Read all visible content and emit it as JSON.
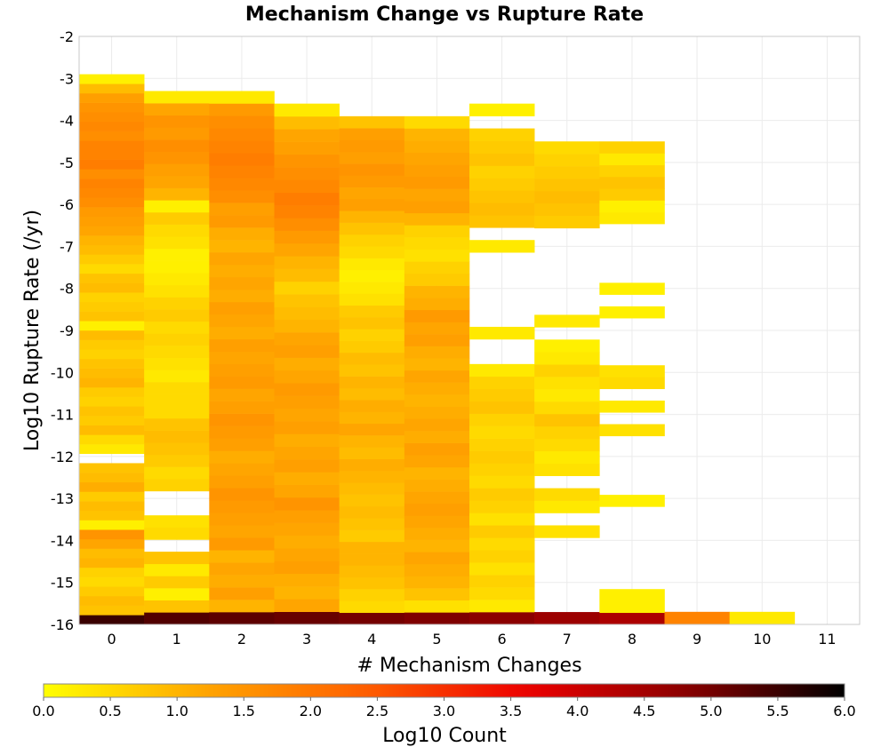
{
  "chart_data": {
    "type": "heatmap",
    "title": "Mechanism Change vs Rupture Rate",
    "xlabel": "# Mechanism Changes",
    "ylabel": "Log10 Rupture Rate (/yr)",
    "colorbar_label": "Log10 Count",
    "x_ticks": [
      "0",
      "1",
      "2",
      "3",
      "4",
      "5",
      "6",
      "7",
      "8",
      "9",
      "10",
      "11"
    ],
    "y_ticks": [
      "-2",
      "-3",
      "-4",
      "-5",
      "-6",
      "-7",
      "-8",
      "-9",
      "-10",
      "-11",
      "-12",
      "-13",
      "-14",
      "-15",
      "-16"
    ],
    "colorbar_ticks": [
      "0.0",
      "0.5",
      "1.0",
      "1.5",
      "2.0",
      "2.5",
      "3.0",
      "3.5",
      "4.0",
      "4.5",
      "5.0",
      "5.5",
      "6.0"
    ],
    "xlim": [
      -0.5,
      11.5
    ],
    "ylim": [
      -16,
      -2
    ],
    "clim": [
      0,
      6
    ],
    "bin_height": 0.2857,
    "colormap": [
      "#ffff00",
      "#ffa500",
      "#ff6000",
      "#ee0000",
      "#8b0000",
      "#000000"
    ],
    "columns": [
      {
        "x": 0,
        "ylow": -16.0,
        "yhigh": -2.9,
        "values": [
          5.5,
          0.8,
          0.9,
          0.7,
          0.5,
          0.6,
          1.0,
          0.9,
          1.2,
          1.5,
          0.2,
          0.8,
          0.9,
          0.7,
          1.1,
          0.9,
          0.8,
          null,
          0.3,
          0.5,
          0.9,
          0.7,
          0.8,
          0.6,
          0.7,
          1.0,
          0.9,
          0.8,
          0.6,
          0.7,
          0.9,
          0.2,
          0.8,
          0.7,
          0.6,
          0.9,
          0.8,
          0.5,
          0.7,
          0.9,
          1.0,
          1.2,
          1.3,
          1.4,
          1.6,
          1.7,
          1.8,
          1.6,
          1.9,
          1.8,
          1.8,
          1.6,
          1.7,
          1.6,
          1.5,
          1.3,
          0.9,
          0.2
        ]
      },
      {
        "x": 1,
        "ylow": -16.0,
        "yhigh": -3.3,
        "values": [
          5.3,
          0.8,
          0.2,
          0.7,
          0.3,
          0.8,
          null,
          0.5,
          0.4,
          null,
          null,
          0.6,
          0.5,
          0.7,
          0.8,
          0.9,
          0.8,
          0.5,
          0.5,
          0.5,
          0.3,
          0.4,
          0.5,
          0.6,
          0.5,
          0.7,
          0.6,
          0.4,
          0.3,
          0.2,
          0.2,
          0.4,
          0.5,
          0.7,
          0.2,
          1.0,
          1.2,
          1.3,
          1.5,
          1.6,
          1.4,
          1.5,
          1.2,
          0.3
        ]
      },
      {
        "x": 2,
        "ylow": -16.0,
        "yhigh": -3.3,
        "values": [
          5.2,
          1.0,
          1.3,
          1.1,
          1.2,
          1.0,
          1.4,
          1.2,
          1.3,
          1.4,
          1.5,
          1.3,
          1.2,
          1.1,
          1.3,
          1.4,
          1.5,
          1.3,
          1.2,
          1.4,
          1.3,
          1.2,
          1.3,
          1.1,
          1.2,
          1.3,
          1.1,
          1.2,
          1.1,
          1.2,
          1.0,
          1.1,
          1.4,
          1.3,
          1.6,
          1.7,
          1.8,
          1.9,
          1.8,
          1.7,
          1.6,
          1.4,
          0.3
        ]
      },
      {
        "x": 3,
        "ylow": -16.0,
        "yhigh": -3.6,
        "values": [
          5.1,
          1.2,
          1.0,
          1.1,
          1.3,
          1.2,
          1.1,
          1.2,
          1.3,
          1.5,
          1.2,
          1.1,
          1.3,
          1.2,
          1.1,
          1.3,
          1.2,
          1.3,
          1.4,
          1.2,
          1.1,
          1.3,
          1.2,
          1.0,
          0.9,
          0.8,
          0.6,
          0.9,
          1.0,
          1.2,
          1.4,
          1.6,
          1.8,
          1.9,
          1.7,
          1.6,
          1.5,
          1.3,
          1.2,
          0.9,
          0.3
        ]
      },
      {
        "x": 4,
        "ylow": -16.0,
        "yhigh": -3.9,
        "values": [
          5.0,
          0.5,
          0.6,
          0.8,
          0.9,
          1.0,
          1.0,
          0.7,
          0.8,
          0.9,
          0.8,
          0.9,
          1.0,
          1.1,
          0.9,
          1.0,
          1.2,
          1.0,
          1.1,
          0.9,
          1.0,
          0.8,
          0.9,
          0.7,
          0.6,
          0.8,
          0.7,
          0.4,
          0.3,
          0.2,
          0.3,
          0.5,
          0.6,
          0.8,
          1.0,
          1.3,
          1.2,
          1.4,
          1.5,
          1.3,
          1.4,
          1.3,
          0.8
        ]
      },
      {
        "x": 5,
        "ylow": -16.0,
        "yhigh": -3.9,
        "values": [
          4.9,
          0.4,
          0.8,
          1.0,
          1.1,
          1.2,
          1.0,
          1.1,
          1.2,
          1.3,
          1.2,
          1.1,
          1.0,
          1.2,
          1.3,
          1.1,
          1.2,
          1.1,
          1.0,
          1.1,
          1.2,
          1.0,
          1.1,
          1.3,
          1.2,
          1.4,
          1.1,
          1.0,
          0.7,
          0.6,
          0.4,
          0.5,
          0.6,
          1.0,
          1.3,
          1.2,
          1.4,
          1.3,
          1.2,
          1.1,
          1.0,
          0.5
        ]
      },
      {
        "x": 6,
        "ylow": -16.0,
        "yhigh": -3.6,
        "values": [
          4.8,
          0.3,
          0.5,
          0.6,
          0.4,
          0.6,
          0.5,
          0.7,
          0.4,
          0.6,
          0.7,
          0.5,
          0.6,
          0.7,
          0.6,
          0.5,
          0.6,
          0.8,
          0.7,
          0.6,
          0.3,
          null,
          null,
          0.3,
          null,
          null,
          null,
          null,
          null,
          null,
          0.3,
          null,
          0.8,
          0.9,
          0.8,
          0.7,
          0.6,
          0.8,
          0.7,
          0.6,
          null,
          0.2
        ]
      },
      {
        "x": 7,
        "ylow": -16.0,
        "yhigh": -4.5,
        "values": [
          4.6,
          null,
          null,
          null,
          null,
          null,
          null,
          0.4,
          null,
          0.3,
          0.5,
          null,
          0.4,
          0.3,
          0.5,
          0.6,
          0.8,
          0.5,
          0.3,
          0.4,
          0.6,
          0.3,
          0.2,
          null,
          0.3,
          null,
          null,
          null,
          null,
          null,
          null,
          null,
          0.7,
          0.8,
          0.9,
          0.8,
          0.7,
          0.6,
          0.5
        ]
      },
      {
        "x": 8,
        "ylow": -16.0,
        "yhigh": -4.5,
        "values": [
          4.4,
          0.2,
          0.2,
          null,
          null,
          null,
          null,
          null,
          null,
          null,
          0.2,
          null,
          null,
          null,
          null,
          null,
          0.4,
          null,
          0.3,
          null,
          0.5,
          0.4,
          null,
          null,
          null,
          null,
          0.2,
          null,
          0.2,
          null,
          null,
          null,
          null,
          null,
          0.3,
          0.2,
          0.7,
          0.8,
          0.6,
          0.3,
          0.6
        ]
      },
      {
        "x": 9,
        "ylow": -16.0,
        "yhigh": -15.7,
        "values": [
          1.8
        ]
      },
      {
        "x": 10,
        "ylow": -16.0,
        "yhigh": -15.7,
        "values": [
          0.3
        ]
      }
    ]
  }
}
